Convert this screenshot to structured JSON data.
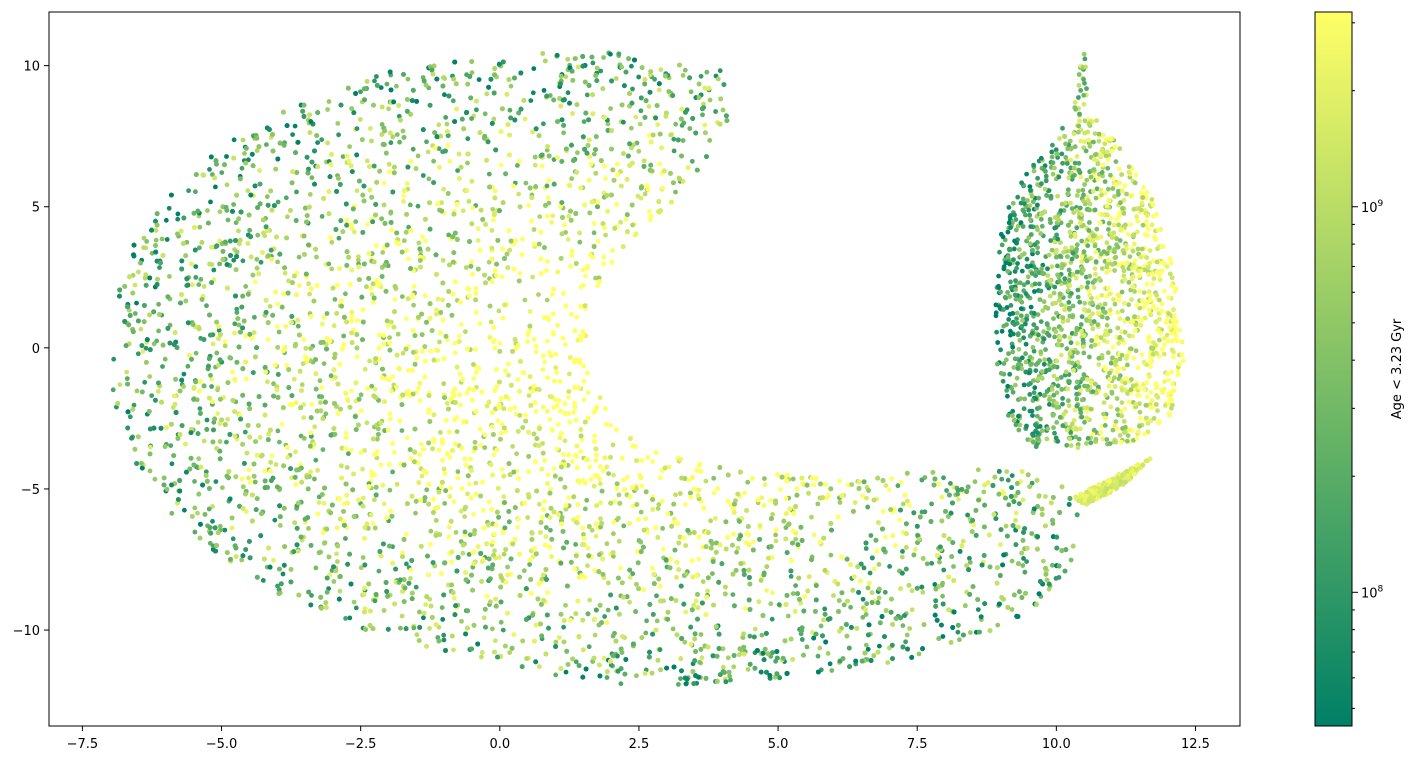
{
  "chart_data": {
    "type": "scatter",
    "title": "",
    "xlabel": "",
    "ylabel": "",
    "xlim": [
      -8.1,
      13.3
    ],
    "ylim": [
      -13.4,
      11.9
    ],
    "xticks": [
      -7.5,
      -5.0,
      -2.5,
      0.0,
      2.5,
      5.0,
      7.5,
      10.0,
      12.5
    ],
    "xtick_labels": [
      "−7.5",
      "−5.0",
      "−2.5",
      "0.0",
      "2.5",
      "5.0",
      "7.5",
      "10.0",
      "12.5"
    ],
    "yticks": [
      10,
      5,
      0,
      -5,
      -10
    ],
    "ytick_labels": [
      "10",
      "5",
      "0",
      "−5",
      "−10"
    ],
    "grid": false,
    "point_count_approx": 200000,
    "point_groups": [
      {
        "name": "",
        "description_points": "crescent-shaped main cloud",
        "outline": [
          [
            4.1,
            9.8
          ],
          [
            3.0,
            10.3
          ],
          [
            2.0,
            10.5
          ],
          [
            0.0,
            10.4
          ],
          [
            -2.0,
            9.8
          ],
          [
            -4.0,
            8.3
          ],
          [
            -5.5,
            6.5
          ],
          [
            -6.5,
            4.0
          ],
          [
            -7.0,
            1.5
          ],
          [
            -7.0,
            -1.5
          ],
          [
            -6.5,
            -4.5
          ],
          [
            -5.5,
            -6.8
          ],
          [
            -4.0,
            -8.8
          ],
          [
            -2.0,
            -10.3
          ],
          [
            0.0,
            -11.3
          ],
          [
            2.0,
            -11.9
          ],
          [
            3.0,
            -12.0
          ],
          [
            5.0,
            -11.8
          ],
          [
            7.0,
            -11.2
          ],
          [
            8.5,
            -10.4
          ],
          [
            9.8,
            -9.0
          ],
          [
            10.3,
            -7.5
          ],
          [
            10.4,
            -6.0
          ],
          [
            10.2,
            -5.0
          ],
          [
            9.5,
            -4.2
          ],
          [
            8.0,
            -4.3
          ],
          [
            6.0,
            -4.6
          ],
          [
            4.5,
            -4.4
          ],
          [
            3.0,
            -3.8
          ],
          [
            2.0,
            -2.5
          ],
          [
            1.5,
            -0.5
          ],
          [
            1.6,
            1.5
          ],
          [
            2.2,
            3.5
          ],
          [
            3.0,
            5.0
          ],
          [
            3.8,
            6.5
          ],
          [
            4.1,
            8.0
          ]
        ]
      },
      {
        "name": "",
        "description_points": "teardrop-shaped secondary cloud",
        "outline": [
          [
            10.5,
            10.6
          ],
          [
            10.6,
            9.5
          ],
          [
            10.5,
            8.5
          ],
          [
            11.0,
            7.5
          ],
          [
            11.8,
            5.0
          ],
          [
            12.2,
            2.0
          ],
          [
            12.3,
            -0.5
          ],
          [
            12.1,
            -2.3
          ],
          [
            11.5,
            -3.3
          ],
          [
            10.5,
            -3.6
          ],
          [
            9.6,
            -3.5
          ],
          [
            9.1,
            -2.5
          ],
          [
            8.9,
            -0.5
          ],
          [
            8.9,
            2.0
          ],
          [
            9.0,
            4.5
          ],
          [
            9.5,
            6.3
          ],
          [
            10.0,
            7.5
          ],
          [
            10.3,
            8.5
          ],
          [
            10.4,
            9.7
          ]
        ]
      },
      {
        "name": "",
        "description_points": "thin tail strip",
        "outline": [
          [
            10.5,
            -5.6
          ],
          [
            11.2,
            -4.9
          ],
          [
            11.7,
            -3.9
          ],
          [
            11.4,
            -4.2
          ],
          [
            10.7,
            -4.9
          ],
          [
            10.3,
            -5.3
          ]
        ]
      }
    ],
    "colorbar": {
      "label": "Age < 3.23 Gyr",
      "scale": "log",
      "range": [
        45000000,
        3200000000
      ],
      "major_ticks": [
        100000000,
        1000000000
      ],
      "major_tick_labels": [
        {
          "base": "10",
          "exp": "8"
        },
        {
          "base": "10",
          "exp": "9"
        }
      ],
      "colormap": "summer",
      "color_low": "#008066",
      "color_high": "#ffff66"
    }
  }
}
